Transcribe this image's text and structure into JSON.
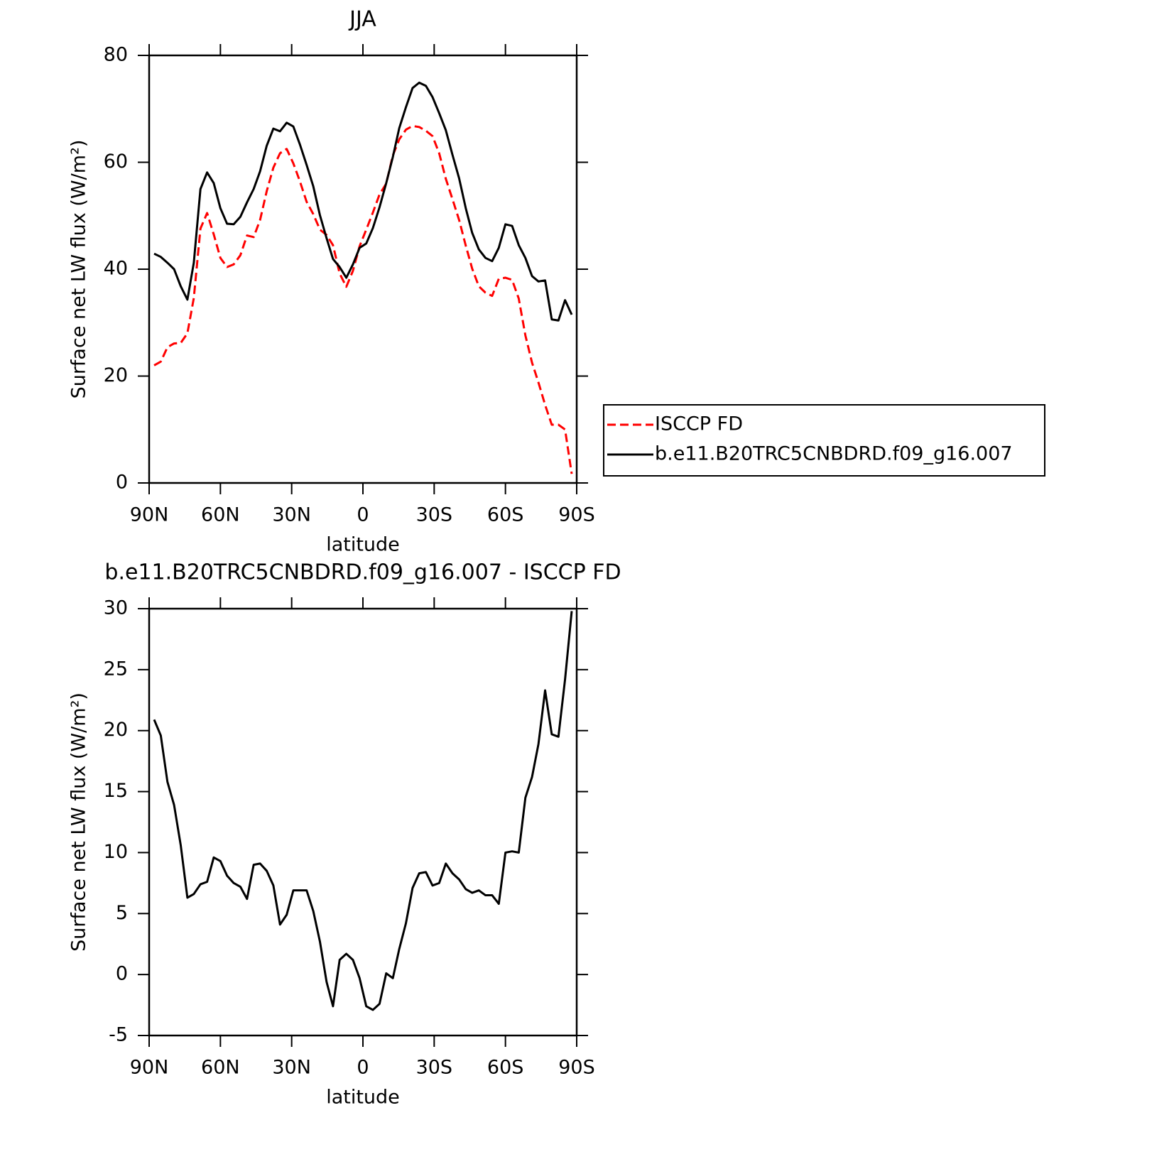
{
  "chart_data": [
    {
      "type": "line",
      "title": "JJA",
      "xlabel": "latitude",
      "ylabel": "Surface net LW flux (W/m²)",
      "x": [
        87.9,
        85.1,
        82.3,
        79.5,
        76.7,
        73.9,
        71.2,
        68.4,
        65.6,
        62.8,
        60.0,
        57.2,
        54.4,
        51.6,
        48.8,
        46.0,
        43.3,
        40.5,
        37.7,
        34.9,
        32.1,
        29.3,
        26.5,
        23.7,
        20.9,
        18.1,
        15.3,
        12.6,
        9.8,
        7.0,
        4.2,
        1.4,
        -1.4,
        -4.2,
        -7.0,
        -9.8,
        -12.6,
        -15.3,
        -18.1,
        -20.9,
        -23.7,
        -26.5,
        -29.3,
        -32.1,
        -34.9,
        -37.7,
        -40.5,
        -43.3,
        -46.0,
        -48.8,
        -51.6,
        -54.4,
        -57.2,
        -60.0,
        -62.8,
        -65.6,
        -68.4,
        -71.2,
        -73.9,
        -76.7,
        -79.5,
        -82.3,
        -85.1,
        -87.9
      ],
      "series": [
        {
          "name": "ISCCP FD",
          "color": "#ff0000",
          "linestyle": "dashed",
          "values": [
            22.0,
            22.7,
            25.4,
            26.1,
            26.2,
            28.0,
            34.6,
            47.6,
            50.5,
            46.5,
            42.1,
            40.4,
            40.9,
            42.6,
            46.3,
            46.0,
            49.2,
            54.6,
            59.0,
            61.7,
            62.5,
            59.8,
            56.4,
            52.6,
            50.3,
            47.4,
            46.4,
            44.5,
            39.2,
            36.7,
            39.7,
            44.3,
            47.4,
            50.6,
            54.0,
            56.0,
            61.3,
            64.3,
            66.1,
            66.8,
            66.6,
            65.9,
            64.9,
            61.7,
            56.9,
            53.1,
            49.2,
            44.4,
            40.1,
            36.8,
            35.6,
            35.0,
            38.2,
            38.4,
            38.0,
            34.5,
            27.6,
            22.5,
            18.8,
            14.6,
            10.9,
            10.9,
            10.0,
            1.7
          ]
        },
        {
          "name": "b.e11.B20TRC5CNBDRD.f09_g16.007",
          "color": "#000000",
          "linestyle": "solid",
          "values": [
            42.9,
            42.3,
            41.2,
            40.0,
            36.8,
            34.3,
            41.2,
            55.0,
            58.1,
            56.1,
            51.4,
            48.5,
            48.4,
            49.8,
            52.5,
            55.0,
            58.3,
            63.1,
            66.3,
            65.8,
            67.4,
            66.7,
            63.3,
            59.5,
            55.5,
            50.1,
            45.8,
            41.9,
            40.4,
            38.4,
            40.9,
            44.0,
            44.8,
            47.7,
            51.6,
            56.1,
            61.0,
            66.4,
            70.3,
            73.9,
            74.9,
            74.3,
            72.2,
            69.2,
            66.0,
            61.4,
            57.0,
            51.4,
            46.8,
            43.7,
            42.1,
            41.5,
            44.0,
            48.4,
            48.1,
            44.5,
            42.1,
            38.7,
            37.7,
            37.9,
            30.6,
            30.4,
            34.2,
            31.5
          ]
        }
      ],
      "xlim": [
        90,
        -90
      ],
      "xticks": [
        {
          "value": 90,
          "label": "90N"
        },
        {
          "value": 60,
          "label": "60N"
        },
        {
          "value": 30,
          "label": "30N"
        },
        0,
        {
          "value": -30,
          "label": "30S"
        },
        {
          "value": -60,
          "label": "60S"
        },
        {
          "value": -90,
          "label": "90S"
        }
      ],
      "ylim": [
        0,
        80
      ],
      "yticks": [
        0,
        20,
        40,
        60,
        80
      ],
      "legend": "right"
    },
    {
      "type": "line",
      "title": "b.e11.B20TRC5CNBDRD.f09_g16.007 - ISCCP FD",
      "xlabel": "latitude",
      "ylabel": "Surface net LW flux (W/m²)",
      "x": [
        87.9,
        85.1,
        82.3,
        79.5,
        76.7,
        73.9,
        71.2,
        68.4,
        65.6,
        62.8,
        60.0,
        57.2,
        54.4,
        51.6,
        48.8,
        46.0,
        43.3,
        40.5,
        37.7,
        34.9,
        32.1,
        29.3,
        26.5,
        23.7,
        20.9,
        18.1,
        15.3,
        12.6,
        9.8,
        7.0,
        4.2,
        1.4,
        -1.4,
        -4.2,
        -7.0,
        -9.8,
        -12.6,
        -15.3,
        -18.1,
        -20.9,
        -23.7,
        -26.5,
        -29.3,
        -32.1,
        -34.9,
        -37.7,
        -40.5,
        -43.3,
        -46.0,
        -48.8,
        -51.6,
        -54.4,
        -57.2,
        -60.0,
        -62.8,
        -65.6,
        -68.4,
        -71.2,
        -73.9,
        -76.7,
        -79.5,
        -82.3,
        -85.1,
        -87.9
      ],
      "color": "#000000",
      "values": [
        20.9,
        19.6,
        15.8,
        13.9,
        10.6,
        6.3,
        6.6,
        7.4,
        7.6,
        9.6,
        9.3,
        8.1,
        7.5,
        7.2,
        6.2,
        9.0,
        9.1,
        8.5,
        7.3,
        4.1,
        4.9,
        6.9,
        6.9,
        6.9,
        5.2,
        2.7,
        -0.6,
        -2.6,
        1.2,
        1.7,
        1.2,
        -0.3,
        -2.6,
        -2.9,
        -2.4,
        0.1,
        -0.3,
        2.1,
        4.2,
        7.1,
        8.3,
        8.4,
        7.3,
        7.5,
        9.1,
        8.3,
        7.8,
        7.0,
        6.7,
        6.9,
        6.5,
        6.5,
        5.8,
        10.0,
        10.1,
        10.0,
        14.5,
        16.2,
        18.9,
        23.3,
        19.7,
        19.5,
        24.2,
        29.8
      ],
      "xlim": [
        90,
        -90
      ],
      "xticks": [
        {
          "value": 90,
          "label": "90N"
        },
        {
          "value": 60,
          "label": "60N"
        },
        {
          "value": 30,
          "label": "30N"
        },
        0,
        {
          "value": -30,
          "label": "30S"
        },
        {
          "value": -60,
          "label": "60S"
        },
        {
          "value": -90,
          "label": "90S"
        }
      ],
      "ylim": [
        -5,
        30
      ],
      "yticks": [
        -5,
        0,
        5,
        10,
        15,
        20,
        25,
        30
      ]
    }
  ]
}
